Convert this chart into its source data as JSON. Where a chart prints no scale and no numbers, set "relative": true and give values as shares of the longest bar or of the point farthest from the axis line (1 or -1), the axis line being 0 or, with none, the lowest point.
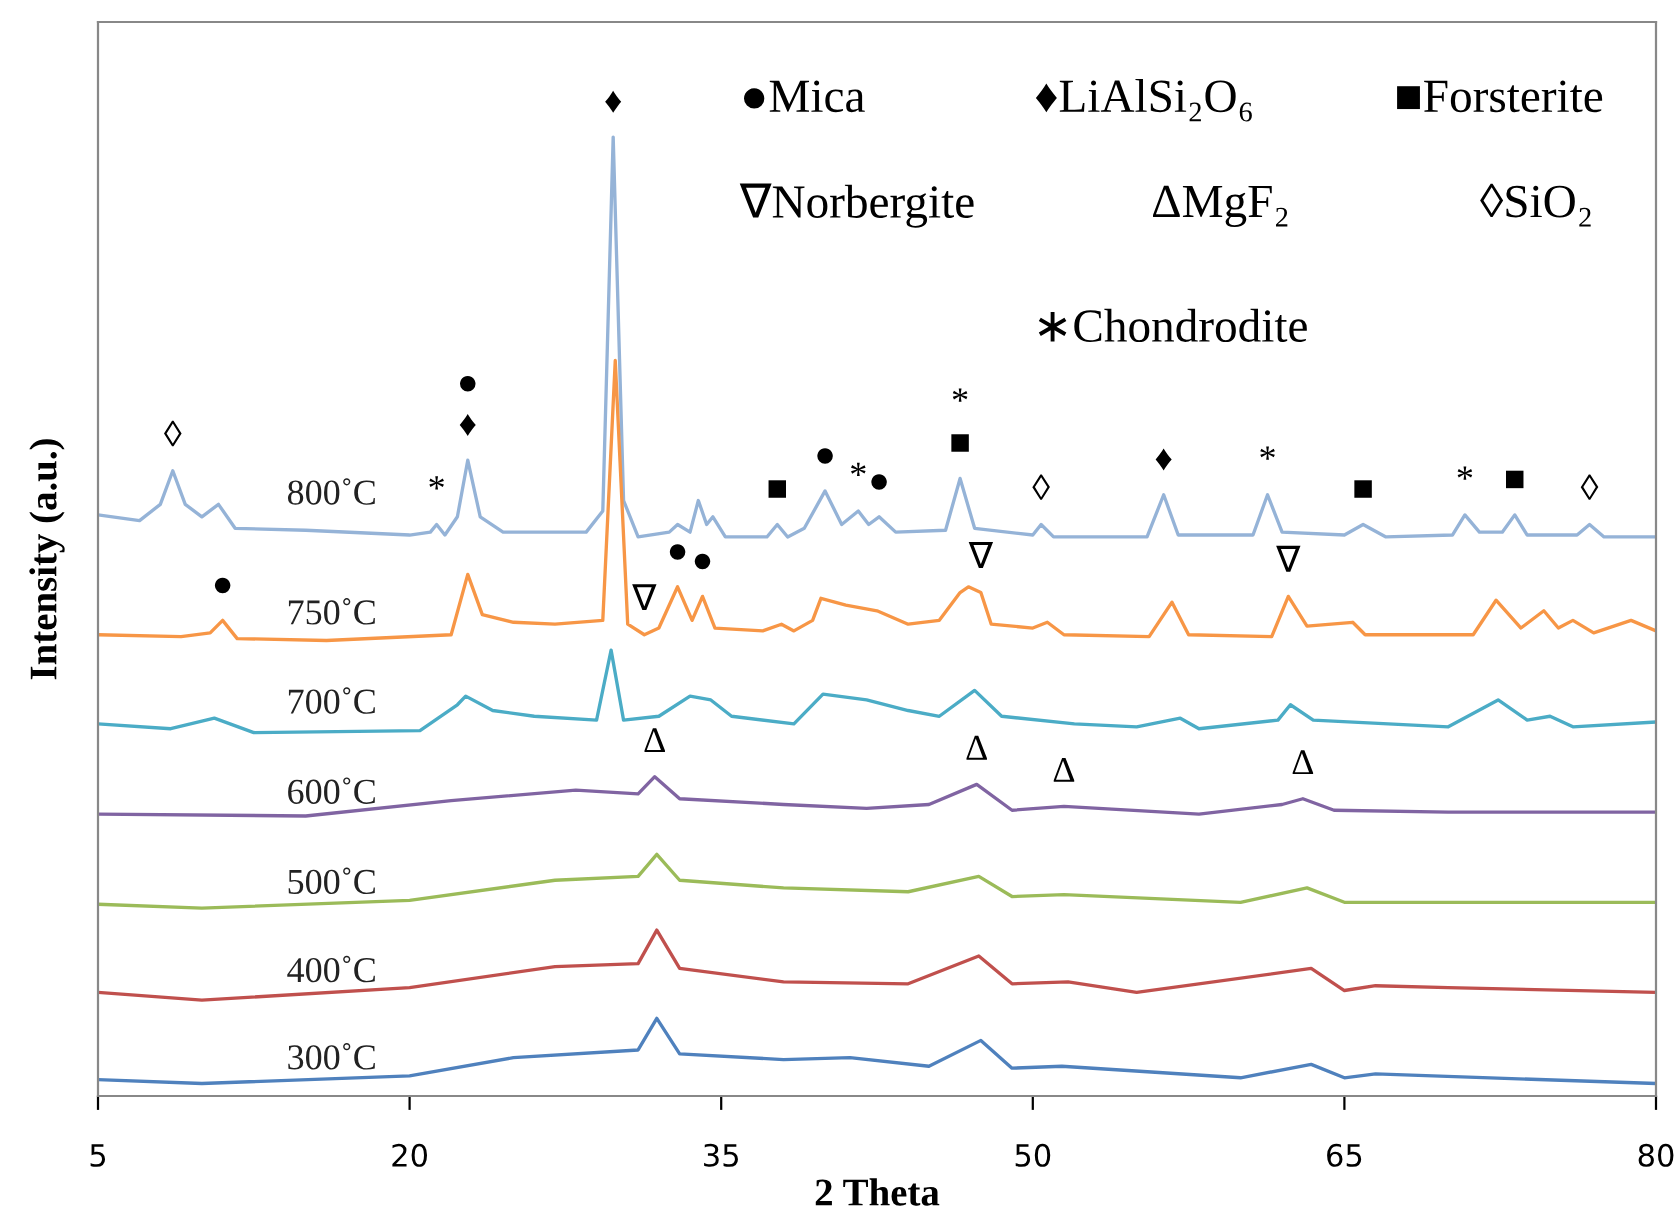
{
  "chart_data": {
    "type": "line",
    "xlabel": "2 Theta",
    "ylabel": "Intensity (a.u.)",
    "relative": true,
    "xlim": [
      5,
      80
    ],
    "xticks": [
      5,
      20,
      35,
      50,
      65,
      80
    ],
    "grid": false,
    "legend": false,
    "series": [
      {
        "name": "800˚C",
        "color": "#95b3d7",
        "x": [
          5,
          7,
          8.0,
          8.6,
          9.2,
          10.0,
          10.8,
          11.6,
          15,
          20,
          21.0,
          21.3,
          21.7,
          22.3,
          22.8,
          23.4,
          24.5,
          28.5,
          29.3,
          29.8,
          30.3,
          31.0,
          32.5,
          32.9,
          33.5,
          33.9,
          34.3,
          34.6,
          35.2,
          37.2,
          37.7,
          38.2,
          39.0,
          40.0,
          40.8,
          41.6,
          42.1,
          42.6,
          43.4,
          45.8,
          46.5,
          47.2,
          50.0,
          50.4,
          51.0,
          55.5,
          56.3,
          57.0,
          60.6,
          61.3,
          62.0,
          65.0,
          65.9,
          67.0,
          70.2,
          70.8,
          71.5,
          72.6,
          73.2,
          73.8,
          76.2,
          76.8,
          77.5,
          80
        ],
        "values": [
          0.606,
          0.6,
          0.617,
          0.652,
          0.617,
          0.604,
          0.617,
          0.592,
          0.59,
          0.585,
          0.588,
          0.596,
          0.585,
          0.604,
          0.663,
          0.604,
          0.588,
          0.588,
          0.61,
          1.0,
          0.621,
          0.583,
          0.588,
          0.596,
          0.588,
          0.621,
          0.596,
          0.604,
          0.583,
          0.583,
          0.596,
          0.583,
          0.592,
          0.631,
          0.596,
          0.61,
          0.596,
          0.604,
          0.588,
          0.59,
          0.644,
          0.592,
          0.585,
          0.596,
          0.583,
          0.583,
          0.627,
          0.585,
          0.585,
          0.627,
          0.588,
          0.585,
          0.596,
          0.583,
          0.585,
          0.606,
          0.588,
          0.588,
          0.606,
          0.585,
          0.585,
          0.596,
          0.583,
          0.583
        ]
      },
      {
        "name": "750˚C",
        "color": "#f79646",
        "x": [
          5,
          9,
          10.4,
          11.0,
          11.7,
          16,
          22.0,
          22.8,
          23.5,
          25,
          27,
          29.3,
          29.9,
          30.5,
          31.3,
          32.0,
          32.9,
          33.6,
          34.1,
          34.7,
          37.0,
          37.9,
          38.5,
          39.4,
          39.8,
          41.0,
          42.5,
          44.0,
          45.5,
          46.5,
          46.9,
          47.5,
          48.0,
          50.0,
          50.7,
          51.5,
          55.6,
          56.7,
          57.5,
          61.5,
          62.3,
          63.2,
          65.4,
          66.0,
          71.2,
          72.3,
          73.5,
          74.6,
          75.3,
          76.0,
          77.0,
          78.8,
          80
        ],
        "values": [
          0.481,
          0.479,
          0.483,
          0.496,
          0.477,
          0.475,
          0.481,
          0.544,
          0.502,
          0.494,
          0.492,
          0.496,
          0.767,
          0.492,
          0.481,
          0.488,
          0.531,
          0.496,
          0.521,
          0.488,
          0.485,
          0.492,
          0.485,
          0.496,
          0.519,
          0.512,
          0.506,
          0.492,
          0.496,
          0.525,
          0.531,
          0.525,
          0.492,
          0.488,
          0.494,
          0.481,
          0.479,
          0.515,
          0.481,
          0.479,
          0.521,
          0.49,
          0.494,
          0.481,
          0.481,
          0.517,
          0.488,
          0.506,
          0.488,
          0.496,
          0.483,
          0.496,
          0.485
        ]
      },
      {
        "name": "700˚C",
        "color": "#4bacc6",
        "x": [
          5,
          8.5,
          10.6,
          12.5,
          20.5,
          22.3,
          22.7,
          24,
          26,
          29.0,
          29.7,
          30.3,
          32,
          33.5,
          34.5,
          35.5,
          38.5,
          39.9,
          42,
          44,
          45.5,
          47.2,
          48.5,
          52,
          55,
          57.1,
          58,
          61.8,
          62.4,
          63.5,
          70,
          72.4,
          73.8,
          74.9,
          76,
          80
        ],
        "values": [
          0.388,
          0.383,
          0.394,
          0.379,
          0.381,
          0.408,
          0.417,
          0.402,
          0.396,
          0.392,
          0.465,
          0.392,
          0.396,
          0.417,
          0.413,
          0.396,
          0.388,
          0.419,
          0.413,
          0.402,
          0.396,
          0.423,
          0.396,
          0.388,
          0.385,
          0.394,
          0.383,
          0.392,
          0.408,
          0.392,
          0.385,
          0.413,
          0.392,
          0.396,
          0.385,
          0.39
        ]
      },
      {
        "name": "600˚C",
        "color": "#8064a2",
        "x": [
          5,
          15,
          22,
          28,
          31,
          31.8,
          33,
          38,
          42,
          45,
          47.3,
          49,
          51.5,
          58,
          62,
          63.0,
          64.5,
          70,
          80
        ],
        "values": [
          0.294,
          0.292,
          0.308,
          0.319,
          0.315,
          0.333,
          0.31,
          0.304,
          0.3,
          0.304,
          0.325,
          0.298,
          0.302,
          0.294,
          0.304,
          0.31,
          0.298,
          0.296,
          0.296
        ]
      },
      {
        "name": "500˚C",
        "color": "#9bbb59",
        "x": [
          5,
          10,
          20,
          27,
          31,
          31.9,
          33,
          38,
          44,
          47.4,
          49,
          51.5,
          60,
          63.2,
          65,
          80
        ],
        "values": [
          0.2,
          0.196,
          0.204,
          0.225,
          0.229,
          0.252,
          0.225,
          0.217,
          0.213,
          0.229,
          0.208,
          0.21,
          0.202,
          0.217,
          0.202,
          0.202
        ]
      },
      {
        "name": "400˚C",
        "color": "#c0504d",
        "x": [
          5,
          10,
          20,
          27,
          31,
          31.9,
          33,
          38,
          44,
          47.4,
          49,
          51.7,
          55,
          63.4,
          65,
          66.5,
          70,
          80
        ],
        "values": [
          0.108,
          0.1,
          0.113,
          0.135,
          0.138,
          0.173,
          0.133,
          0.119,
          0.117,
          0.146,
          0.117,
          0.119,
          0.108,
          0.133,
          0.11,
          0.115,
          0.113,
          0.108
        ]
      },
      {
        "name": "300˚C",
        "color": "#4f81bd",
        "x": [
          5,
          10,
          20,
          25,
          31,
          31.9,
          33,
          38,
          41.2,
          45,
          47.5,
          49,
          51.4,
          60,
          63.4,
          65,
          66.5,
          80
        ],
        "values": [
          0.017,
          0.013,
          0.021,
          0.04,
          0.048,
          0.081,
          0.044,
          0.038,
          0.04,
          0.031,
          0.058,
          0.029,
          0.031,
          0.019,
          0.033,
          0.019,
          0.023,
          0.013
        ]
      }
    ],
    "annotations": [
      "●Mica",
      "♦LiAlSi₂O₆",
      "■Forsterite",
      "∇Norbergite",
      "ΔMgF₂",
      "◊SiO₂",
      "∗Chondrodite",
      {
        "text": "◊",
        "x": 8.6,
        "y": 0.652
      },
      {
        "text": "♦",
        "x": 22.8,
        "y": 0.663
      },
      {
        "text": "●",
        "x": 22.8,
        "y": 0.663
      },
      {
        "text": "♦",
        "x": 29.8,
        "y": 1.0
      },
      {
        "text": "*",
        "x": 21.3,
        "y": 0.596
      },
      {
        "text": "■",
        "x": 37.7,
        "y": 0.596
      },
      {
        "text": "●",
        "x": 40.0,
        "y": 0.631
      },
      {
        "text": "*",
        "x": 41.6,
        "y": 0.61
      },
      {
        "text": "●",
        "x": 42.6,
        "y": 0.604
      },
      {
        "text": "■",
        "x": 46.5,
        "y": 0.644
      },
      {
        "text": "*",
        "x": 46.5,
        "y": 0.644
      },
      {
        "text": "◊",
        "x": 50.4,
        "y": 0.596
      },
      {
        "text": "♦",
        "x": 56.3,
        "y": 0.627
      },
      {
        "text": "*",
        "x": 61.3,
        "y": 0.627
      },
      {
        "text": "■",
        "x": 65.9,
        "y": 0.596
      },
      {
        "text": "*",
        "x": 70.8,
        "y": 0.606
      },
      {
        "text": "■",
        "x": 73.2,
        "y": 0.606
      },
      {
        "text": "◊",
        "x": 76.8,
        "y": 0.596
      },
      {
        "text": "●",
        "x": 11.0,
        "y": 0.496
      },
      {
        "text": "∇",
        "x": 31.3,
        "y": 0.481
      },
      {
        "text": "●",
        "x": 32.9,
        "y": 0.531
      },
      {
        "text": "●",
        "x": 34.1,
        "y": 0.521
      },
      {
        "text": "∇",
        "x": 47.5,
        "y": 0.525
      },
      {
        "text": "∇",
        "x": 62.3,
        "y": 0.521
      },
      {
        "text": "Δ",
        "x": 31.8,
        "y": 0.333
      },
      {
        "text": "Δ",
        "x": 47.3,
        "y": 0.325
      },
      {
        "text": "Δ",
        "x": 51.5,
        "y": 0.302
      },
      {
        "text": "Δ",
        "x": 63.0,
        "y": 0.31
      }
    ]
  }
}
